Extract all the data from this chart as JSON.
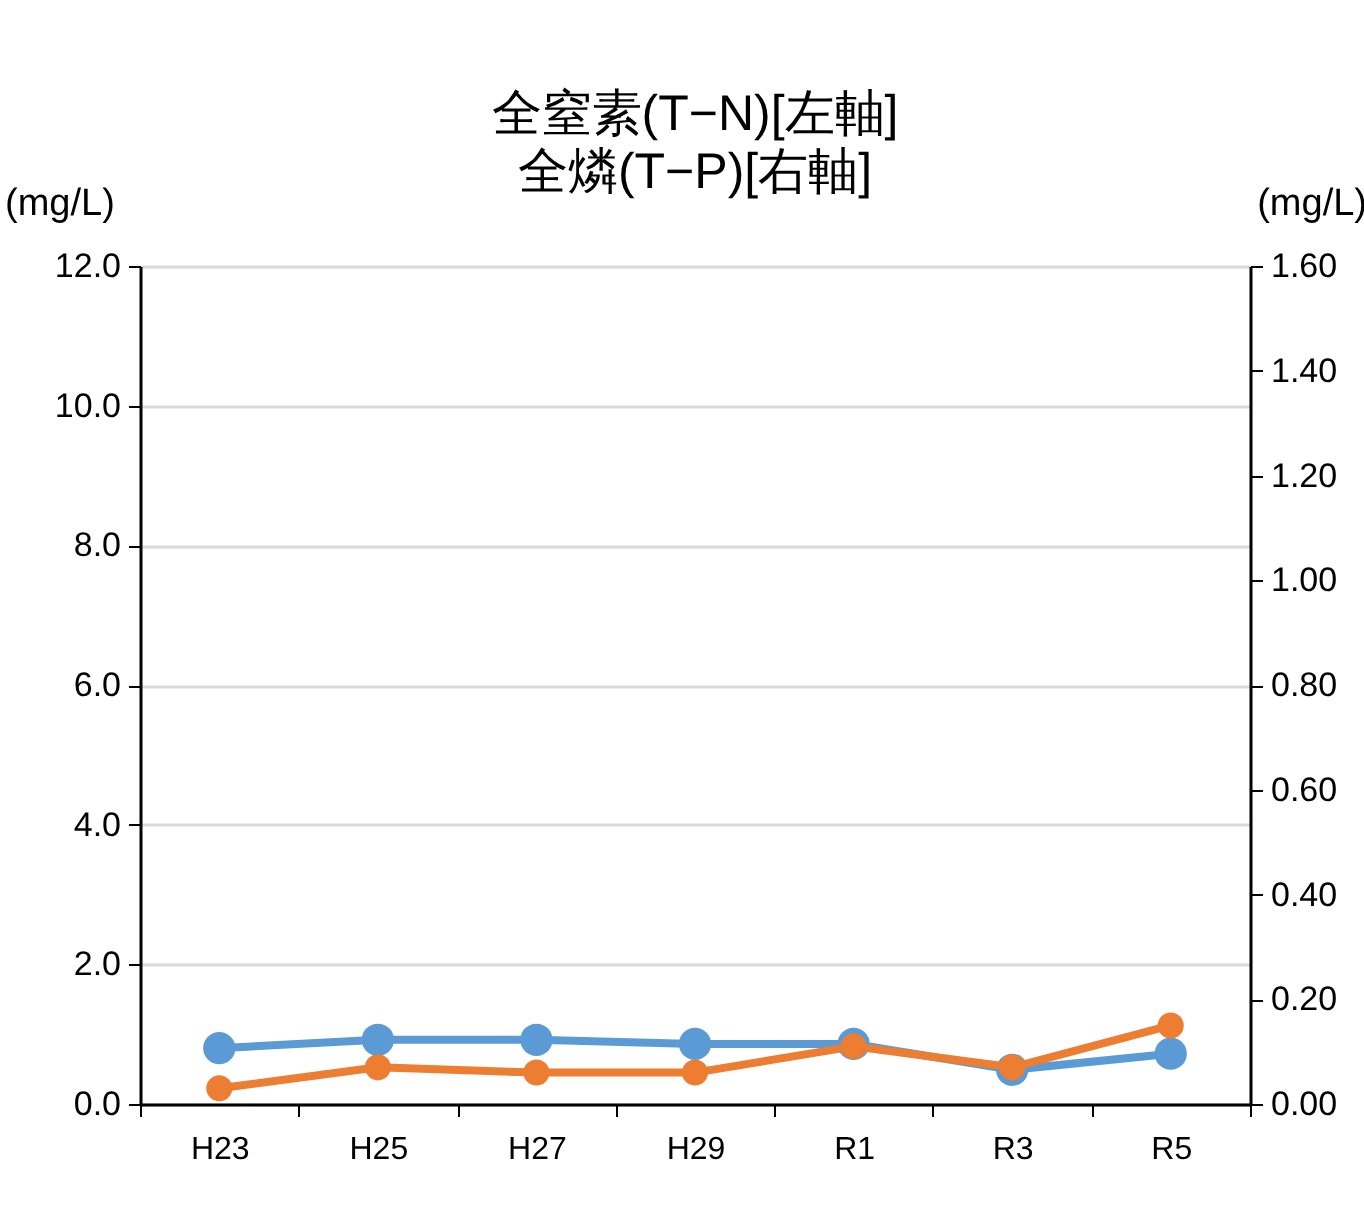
{
  "chart_data": {
    "type": "line",
    "title": "全窒素(T−N)[左軸]",
    "subtitle": "全燐(T−P)[右軸]",
    "ylabel": "(mg/L)",
    "y2label": "(mg/L)",
    "categories": [
      "H23",
      "H25",
      "H27",
      "H29",
      "R1",
      "R3",
      "R5"
    ],
    "series": [
      {
        "color": "#5b9bd5",
        "values": [
          0.8,
          0.92,
          0.92,
          0.86,
          0.86,
          0.49,
          0.72
        ]
      },
      {
        "color": "#ed7d31",
        "axis": "y2",
        "values": [
          0.03,
          0.07,
          0.06,
          0.06,
          0.11,
          0.07,
          0.15
        ]
      }
    ],
    "ylim": [
      0,
      12
    ],
    "yticks": [
      {
        "value": 0,
        "label": "0.0"
      },
      {
        "value": 2,
        "label": "2.0"
      },
      {
        "value": 4,
        "label": "4.0"
      },
      {
        "value": 6,
        "label": "6.0"
      },
      {
        "value": 8,
        "label": "8.0"
      },
      {
        "value": 10,
        "label": "10.0"
      },
      {
        "value": 12,
        "label": "12.0"
      }
    ],
    "y2lim": [
      0,
      1.6
    ],
    "y2ticks": [
      {
        "value": 0,
        "label": "0.00"
      },
      {
        "value": 0.2,
        "label": "0.20"
      },
      {
        "value": 0.4,
        "label": "0.40"
      },
      {
        "value": 0.6,
        "label": "0.60"
      },
      {
        "value": 0.8,
        "label": "0.80"
      },
      {
        "value": 1,
        "label": "1.00"
      },
      {
        "value": 1.2,
        "label": "1.20"
      },
      {
        "value": 1.4,
        "label": "1.40"
      },
      {
        "value": 1.6,
        "label": "1.60"
      }
    ],
    "grid": "y",
    "marker": "circle",
    "line_style": "solid"
  }
}
